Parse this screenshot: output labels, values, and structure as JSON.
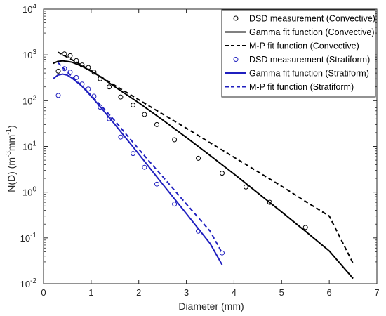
{
  "chart_data": {
    "type": "scatter",
    "xlabel": "Diameter (mm)",
    "ylabel_parts": [
      "N(D) (m",
      "-3",
      "mm",
      "-1",
      ")"
    ],
    "xlim": [
      0,
      7
    ],
    "ylim": [
      0.01,
      10000
    ],
    "yscale": "log",
    "x_ticks": [
      "0",
      "1",
      "2",
      "3",
      "4",
      "5",
      "6",
      "7"
    ],
    "y_ticks": [
      {
        "value": 0.01,
        "base": "10",
        "exp": "-2"
      },
      {
        "value": 0.1,
        "base": "10",
        "exp": "-1"
      },
      {
        "value": 1,
        "base": "10",
        "exp": "0"
      },
      {
        "value": 10,
        "base": "10",
        "exp": "1"
      },
      {
        "value": 100,
        "base": "10",
        "exp": "2"
      },
      {
        "value": 1000,
        "base": "10",
        "exp": "3"
      },
      {
        "value": 10000,
        "base": "10",
        "exp": "4"
      }
    ],
    "grid": false,
    "legend_position": "top-right",
    "series": [
      {
        "name": "DSD measurement (Convective)",
        "kind": "markers",
        "color": "#000000",
        "x": [
          0.31,
          0.44,
          0.56,
          0.69,
          0.81,
          0.94,
          1.06,
          1.19,
          1.38,
          1.62,
          1.88,
          2.12,
          2.38,
          2.75,
          3.25,
          3.75,
          4.25,
          4.75,
          5.5
        ],
        "y": [
          440,
          1050,
          960,
          750,
          600,
          530,
          420,
          300,
          200,
          120,
          80,
          50,
          30,
          14,
          5.5,
          2.6,
          1.3,
          0.6,
          0.17
        ]
      },
      {
        "name": "Gamma fit function (Convective)",
        "kind": "solid-line",
        "color": "#000000",
        "x": [
          0.2,
          0.3,
          0.4,
          0.5,
          0.6,
          0.8,
          1.0,
          1.2,
          1.5,
          2.0,
          2.5,
          3.0,
          3.5,
          4.0,
          4.5,
          5.0,
          5.5,
          6.0,
          6.5
        ],
        "y": [
          650,
          720,
          740,
          720,
          690,
          570,
          440,
          330,
          200,
          90,
          38,
          15.7,
          6.3,
          2.5,
          0.96,
          0.37,
          0.14,
          0.052,
          0.013
        ]
      },
      {
        "name": "M-P fit function (Convective)",
        "kind": "dashed-line",
        "color": "#000000",
        "x": [
          0.3,
          0.5,
          0.75,
          1.0,
          1.5,
          2.0,
          2.5,
          3.0,
          3.5,
          4.0,
          4.5,
          5.0,
          5.5,
          6.0,
          6.5
        ],
        "y": [
          1150,
          890,
          640,
          450,
          215,
          105,
          51,
          25,
          12,
          5.8,
          2.8,
          1.35,
          0.63,
          0.3,
          0.028
        ]
      },
      {
        "name": "DSD measurement (Stratiform)",
        "kind": "markers",
        "color": "#1f1fbf",
        "x": [
          0.31,
          0.44,
          0.56,
          0.69,
          0.81,
          0.94,
          1.06,
          1.19,
          1.38,
          1.62,
          1.88,
          2.12,
          2.38,
          2.75,
          3.25,
          3.75
        ],
        "y": [
          130,
          500,
          420,
          320,
          230,
          180,
          125,
          72,
          40,
          16,
          7,
          3.5,
          1.5,
          0.55,
          0.14,
          0.047
        ]
      },
      {
        "name": "Gamma fit function (Stratiform)",
        "kind": "solid-line",
        "color": "#1f1fbf",
        "x": [
          0.2,
          0.3,
          0.4,
          0.5,
          0.6,
          0.8,
          1.0,
          1.2,
          1.5,
          2.0,
          2.5,
          3.0,
          3.5,
          3.75
        ],
        "y": [
          300,
          360,
          380,
          360,
          310,
          210,
          125,
          72,
          30,
          6.8,
          1.5,
          0.34,
          0.075,
          0.026
        ]
      },
      {
        "name": "M-P fit function (Stratiform)",
        "kind": "dashed-line",
        "color": "#1f1fbf",
        "x": [
          0.3,
          0.5,
          0.75,
          1.0,
          1.25,
          1.5,
          2.0,
          2.5,
          3.0,
          3.5,
          3.75
        ],
        "y": [
          680,
          420,
          240,
          130,
          70,
          36,
          8.7,
          2.2,
          0.55,
          0.14,
          0.047
        ]
      }
    ]
  }
}
